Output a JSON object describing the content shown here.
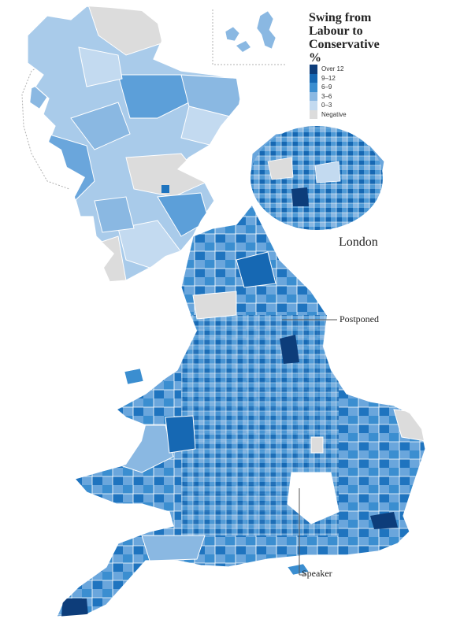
{
  "title": "Swing from Labour to Conservative %",
  "title_lines": [
    "Swing from",
    "Labour to",
    "Conservative",
    "%"
  ],
  "legend": [
    {
      "label": "Over 12",
      "color": "#0d3d7a"
    },
    {
      "label": "9–12",
      "color": "#1668b3"
    },
    {
      "label": "6–9",
      "color": "#3b8ed0"
    },
    {
      "label": "3–6",
      "color": "#8ab8e2"
    },
    {
      "label": "0–3",
      "color": "#c3daf0"
    },
    {
      "label": "Negative",
      "color": "#dcdcdc"
    }
  ],
  "annotations": {
    "london": "London",
    "postponed": "Postponed",
    "speaker": "Speaker"
  },
  "map": {
    "region": "Great Britain",
    "subject": "Parliamentary constituencies",
    "inset": "London",
    "land_colors": {
      "sea": "#ffffff",
      "boundary": "#ffffff",
      "dashed_inset_border": "#b0b0b0"
    }
  }
}
